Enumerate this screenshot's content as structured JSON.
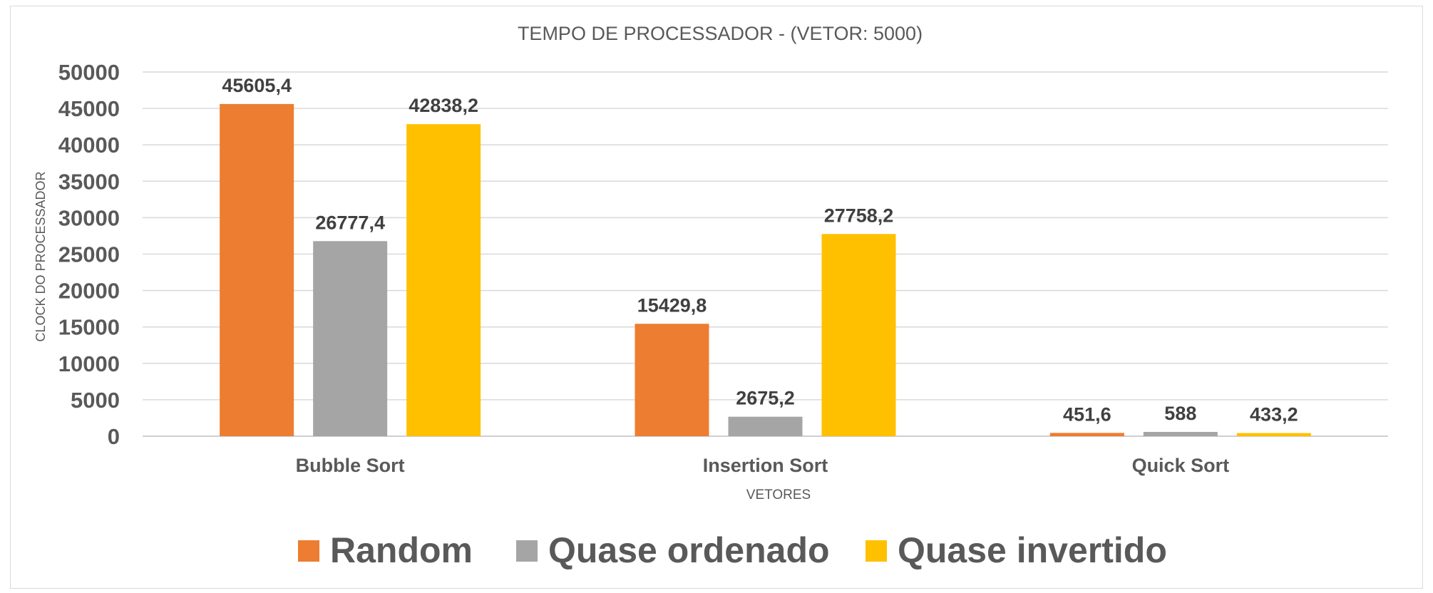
{
  "chart_data": {
    "type": "bar",
    "title": "TEMPO DE PROCESSADOR - (VETOR: 5000)",
    "xlabel": "VETORES",
    "ylabel": "CLOCK DO PROCESSADOR",
    "categories": [
      "Bubble Sort",
      "Insertion Sort",
      "Quick Sort"
    ],
    "series": [
      {
        "name": "Random",
        "color": "#ED7D31",
        "values": [
          45605.4,
          15429.8,
          451.6
        ],
        "labels": [
          "45605,4",
          "15429,8",
          "451,6"
        ]
      },
      {
        "name": "Quase ordenado",
        "color": "#A5A5A5",
        "values": [
          26777.4,
          2675.2,
          588
        ],
        "labels": [
          "26777,4",
          "2675,2",
          "588"
        ]
      },
      {
        "name": "Quase invertido",
        "color": "#FFC000",
        "values": [
          42838.2,
          27758.2,
          433.2
        ],
        "labels": [
          "42838,2",
          "27758,2",
          "433,2"
        ]
      }
    ],
    "ylim": [
      0,
      50000
    ],
    "yticks": [
      0,
      5000,
      10000,
      15000,
      20000,
      25000,
      30000,
      35000,
      40000,
      45000,
      50000
    ],
    "grid": true,
    "legend_position": "bottom"
  }
}
